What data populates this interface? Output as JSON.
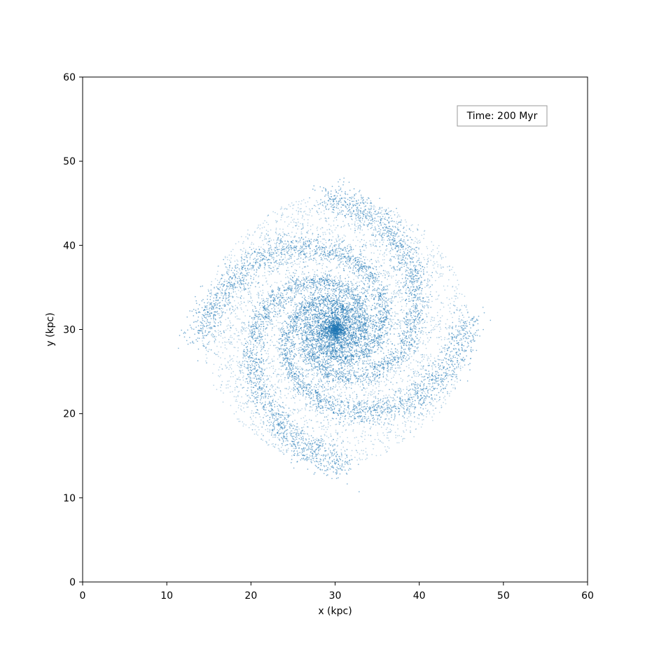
{
  "chart_data": {
    "type": "scatter",
    "title": "",
    "xlabel": "x (kpc)",
    "ylabel": "y (kpc)",
    "xlim": [
      0,
      60
    ],
    "ylim": [
      0,
      60
    ],
    "xticks": [
      "0",
      "10",
      "20",
      "30",
      "40",
      "50",
      "60"
    ],
    "yticks": [
      "0",
      "10",
      "20",
      "30",
      "40",
      "50",
      "60"
    ],
    "grid": false,
    "legend": "none",
    "annotation": {
      "text": "Time: 200 Myr",
      "position": "top-right"
    },
    "series": [
      {
        "kind": "spiral-galaxy-particles",
        "center": [
          30,
          30
        ],
        "radius": 15.5,
        "arms": 4,
        "color": "#1f77b4"
      }
    ]
  }
}
